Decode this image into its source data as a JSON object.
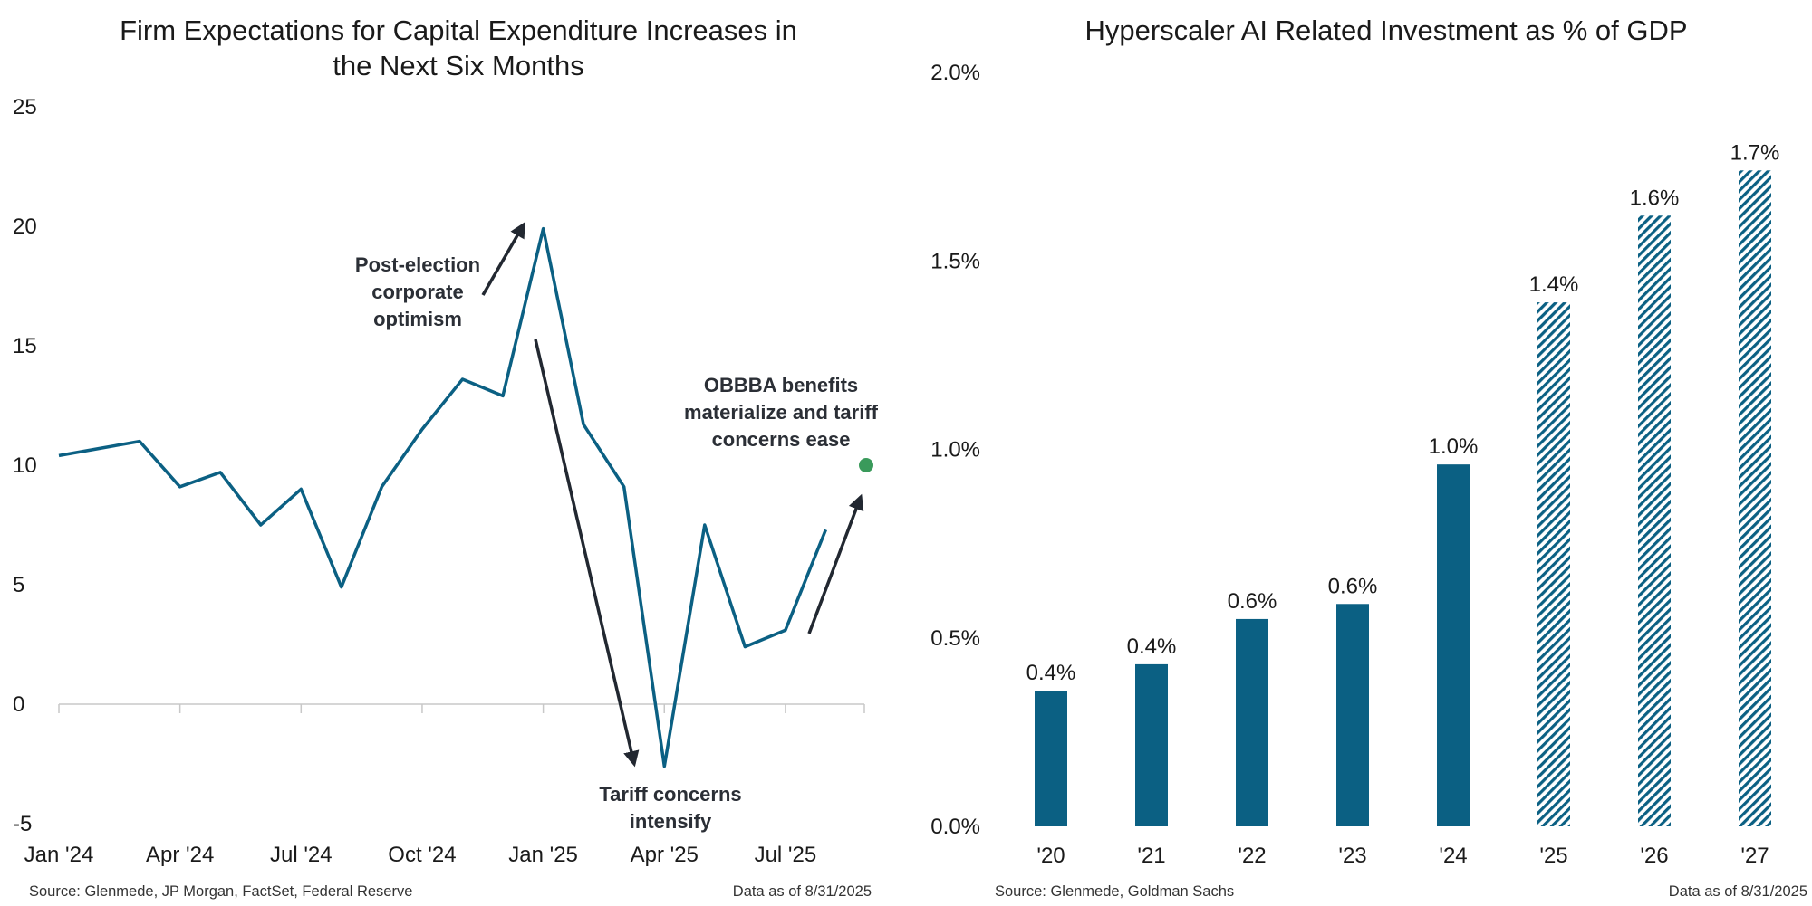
{
  "colors": {
    "primary": "#0b6083",
    "forecast": "#0b6083",
    "marker": "#3a9a5b",
    "arrow": "#222831",
    "axis": "#c8c8c8"
  },
  "chart_data": [
    {
      "type": "line",
      "title_lines": [
        "Firm Expectations for Capital Expenditure Increases in",
        "the Next Six Months"
      ],
      "x_ticks": [
        "Jan '24",
        "Apr '24",
        "Jul '24",
        "Oct '24",
        "Jan '25",
        "Apr '25",
        "Jul '25"
      ],
      "y_ticks": [
        "25",
        "20",
        "15",
        "10",
        "5",
        "0",
        "-5"
      ],
      "ylim": [
        -5,
        25
      ],
      "x": [
        "2024-01",
        "2024-02",
        "2024-03",
        "2024-04",
        "2024-05",
        "2024-06",
        "2024-07",
        "2024-08",
        "2024-09",
        "2024-10",
        "2024-11",
        "2024-12",
        "2025-01",
        "2025-02",
        "2025-03",
        "2025-04",
        "2025-05",
        "2025-06",
        "2025-07",
        "2025-08"
      ],
      "series": [
        {
          "values": [
            10.4,
            10.7,
            11.0,
            9.1,
            9.7,
            7.5,
            9.0,
            4.9,
            9.1,
            11.5,
            13.6,
            12.9,
            19.9,
            11.7,
            9.1,
            -2.6,
            7.5,
            2.4,
            3.1,
            7.3
          ]
        }
      ],
      "highlight_point": {
        "x": "2025-09",
        "y": 10.0
      },
      "annotations": [
        {
          "lines": [
            "Post-election",
            "corporate",
            "optimism"
          ]
        },
        {
          "lines": [
            "Tariff concerns",
            "intensify"
          ]
        },
        {
          "lines": [
            "OBBBA benefits",
            "materialize and tariff",
            "concerns ease"
          ]
        }
      ],
      "source": "Source: Glenmede, JP Morgan, FactSet, Federal Reserve",
      "data_as_of": "Data as of 8/31/2025"
    },
    {
      "type": "bar",
      "title": "Hyperscaler AI Related Investment as % of GDP",
      "categories": [
        "'20",
        "'21",
        "'22",
        "'23",
        "'24",
        "'25",
        "'26",
        "'27"
      ],
      "values": [
        0.36,
        0.43,
        0.55,
        0.59,
        0.96,
        1.39,
        1.62,
        1.74
      ],
      "data_labels": [
        "0.4%",
        "0.4%",
        "0.6%",
        "0.6%",
        "1.0%",
        "1.4%",
        "1.6%",
        "1.7%"
      ],
      "forecast": [
        false,
        false,
        false,
        false,
        false,
        true,
        true,
        true
      ],
      "y_ticks": [
        "2.0%",
        "1.5%",
        "1.0%",
        "0.5%",
        "0.0%"
      ],
      "ylim": [
        0,
        2.0
      ],
      "source": "Source: Glenmede, Goldman Sachs",
      "data_as_of": "Data as of 8/31/2025"
    }
  ]
}
